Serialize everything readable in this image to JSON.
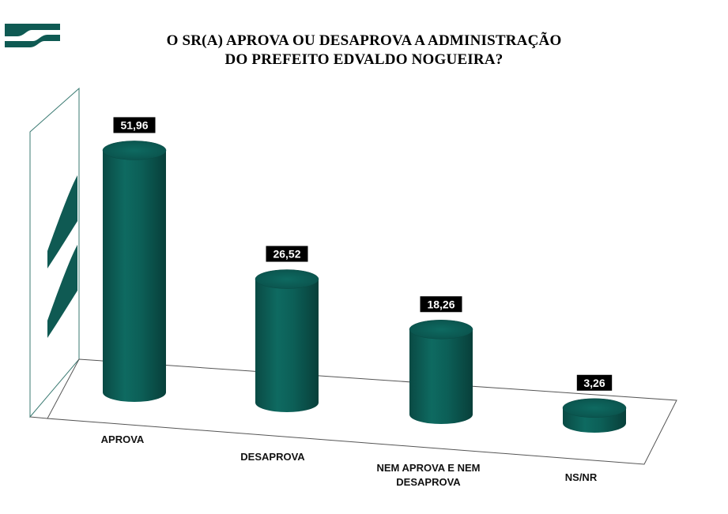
{
  "brand": {
    "logo_icon": "brand-logo-icon",
    "color": "#0f5a53"
  },
  "chart_data": {
    "type": "bar",
    "title_lines": [
      "O SR(A) APROVA OU DESAPROVA A ADMINISTRAÇÃO",
      "DO PREFEITO EDVALDO NOGUEIRA?"
    ],
    "categories": [
      "APROVA",
      "DESAPROVA",
      "NEM APROVA E NEM DESAPROVA",
      "NS/NR"
    ],
    "category_lines": [
      [
        "APROVA"
      ],
      [
        "DESAPROVA"
      ],
      [
        "NEM APROVA E NEM",
        "DESAPROVA"
      ],
      [
        "NS/NR"
      ]
    ],
    "values": [
      51.96,
      26.52,
      18.26,
      3.26
    ],
    "value_labels": [
      "51,96",
      "26,52",
      "18,26",
      "3,26"
    ],
    "bar_style": "3d-cylinder",
    "bar_color": "#0b5e56",
    "label_box_color": "#000000",
    "grid": false,
    "legend": "none"
  }
}
